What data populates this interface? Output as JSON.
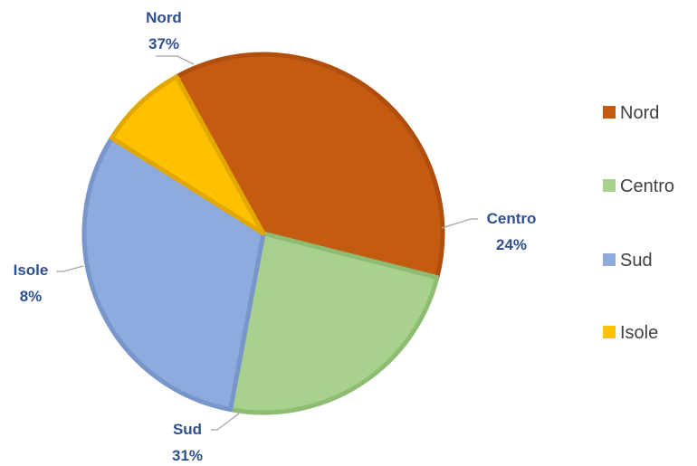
{
  "chart_data": {
    "type": "pie",
    "title": "",
    "legend_position": "right",
    "slices": [
      {
        "label": "Nord",
        "value": 37,
        "display": "37%",
        "color": "#c55a11",
        "edge": "#b04e0d"
      },
      {
        "label": "Centro",
        "value": 24,
        "display": "24%",
        "color": "#a9d18e",
        "edge": "#8fbc73"
      },
      {
        "label": "Sud",
        "value": 31,
        "display": "31%",
        "color": "#8faadc",
        "edge": "#7895cc"
      },
      {
        "label": "Isole",
        "value": 8,
        "display": "8%",
        "color": "#ffc000",
        "edge": "#e3a800"
      }
    ]
  }
}
